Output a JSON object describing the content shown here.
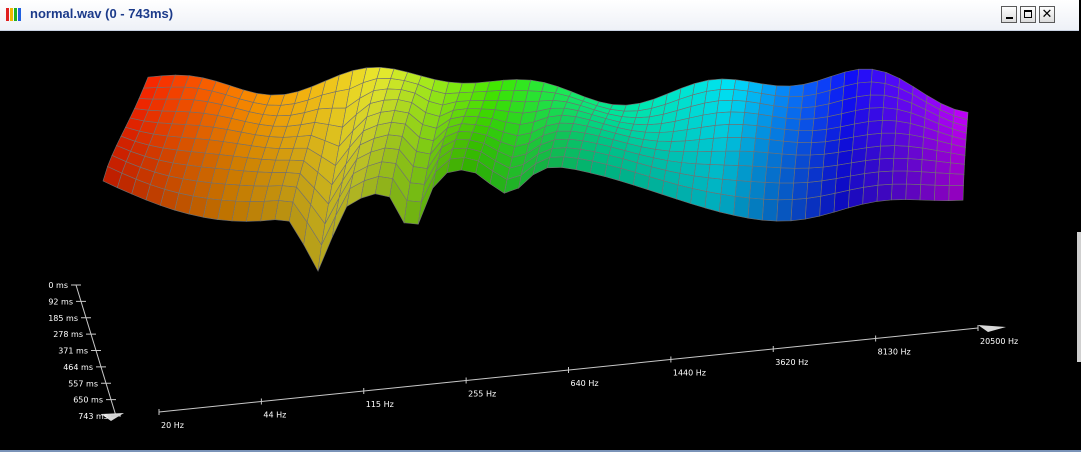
{
  "window": {
    "title": "normal.wav (0 - 743ms)",
    "buttons": {
      "minimize": "minimize",
      "maximize": "maximize",
      "close": "✕"
    }
  },
  "app_icon_colors": [
    "#e02020",
    "#f0b800",
    "#20b020",
    "#2060e0"
  ],
  "chart_data": {
    "type": "surface",
    "x_axis_ticks": [
      "20 Hz",
      "44 Hz",
      "115 Hz",
      "255 Hz",
      "640 Hz",
      "1440 Hz",
      "3620 Hz",
      "8130 Hz",
      "20500 Hz"
    ],
    "z_axis_ticks": [
      "0 ms",
      "92 ms",
      "185 ms",
      "278 ms",
      "371 ms",
      "464 ms",
      "557 ms",
      "650 ms",
      "743 ms"
    ],
    "colors_by_band": [
      "#ff2200",
      "#ff9a00",
      "#f0f030",
      "#40ee00",
      "#00f0a0",
      "#00e8ff",
      "#1010ff",
      "#cc00ff"
    ]
  }
}
